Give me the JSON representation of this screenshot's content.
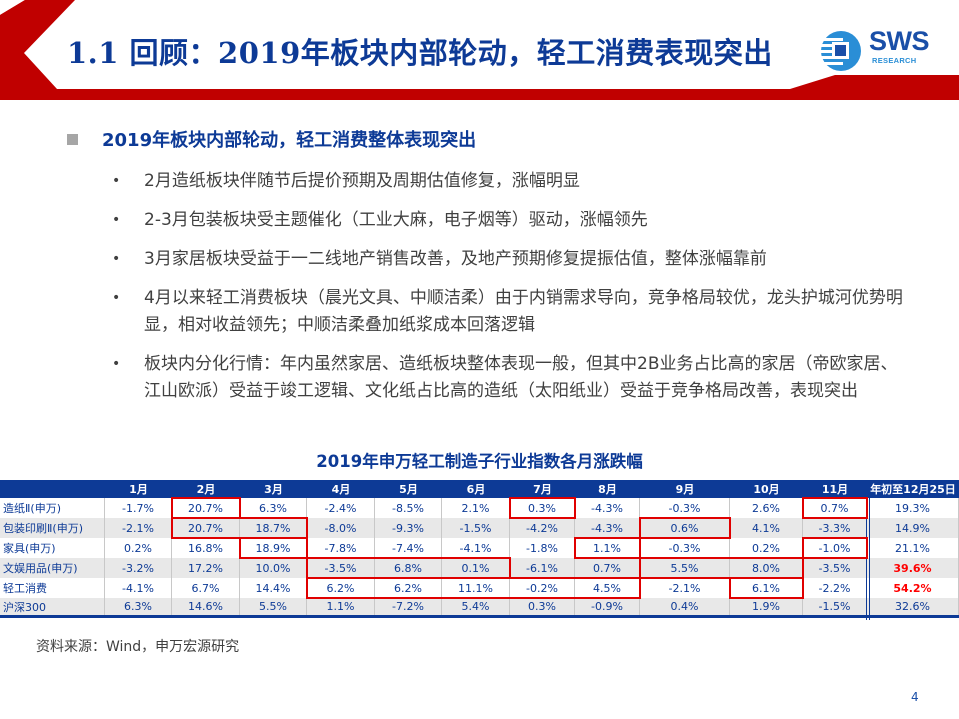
{
  "header": {
    "title": "1.1 回顾：2019年板块内部轮动，轻工消费表现突出",
    "logo_text": "SWS",
    "logo_sub": "RESEARCH",
    "accent_color": "#c00000",
    "title_color": "#0d3a96"
  },
  "section": {
    "heading": "2019年板块内部轮动，轻工消费整体表现突出",
    "bullets": [
      "2月造纸板块伴随节后提价预期及周期估值修复，涨幅明显",
      "2-3月包装板块受主题催化（工业大麻，电子烟等）驱动，涨幅领先",
      "3月家居板块受益于一二线地产销售改善，及地产预期修复提振估值，整体涨幅靠前",
      "4月以来轻工消费板块（晨光文具、中顺洁柔）由于内销需求导向，竞争格局较优，龙头护城河优势明显，相对收益领先；中顺洁柔叠加纸浆成本回落逻辑",
      "板块内分化行情：年内虽然家居、造纸板块整体表现一般，但其中2B业务占比高的家居（帝欧家居、江山欧派）受益于竣工逻辑、文化纸占比高的造纸（太阳纸业）受益于竞争格局改善，表现突出"
    ]
  },
  "table": {
    "title": "2019年申万轻工制造子行业指数各月涨跌幅",
    "columns": [
      "",
      "1月",
      "2月",
      "3月",
      "4月",
      "5月",
      "6月",
      "7月",
      "8月",
      "9月",
      "10月",
      "11月",
      "年初至12月25日"
    ],
    "rows": [
      {
        "label": "造纸Ⅱ(申万)",
        "values": [
          "-1.7%",
          "20.7%",
          "6.3%",
          "-2.4%",
          "-8.5%",
          "2.1%",
          "0.3%",
          "-4.3%",
          "-0.3%",
          "2.6%",
          "0.7%",
          "19.3%"
        ]
      },
      {
        "label": "包装印刷Ⅱ(申万)",
        "values": [
          "-2.1%",
          "20.7%",
          "18.7%",
          "-8.0%",
          "-9.3%",
          "-1.5%",
          "-4.2%",
          "-4.3%",
          "0.6%",
          "4.1%",
          "-3.3%",
          "14.9%"
        ]
      },
      {
        "label": "家具(申万)",
        "values": [
          "0.2%",
          "16.8%",
          "18.9%",
          "-7.8%",
          "-7.4%",
          "-4.1%",
          "-1.8%",
          "1.1%",
          "-0.3%",
          "0.2%",
          "-1.0%",
          "21.1%"
        ]
      },
      {
        "label": "文娱用品(申万)",
        "values": [
          "-3.2%",
          "17.2%",
          "10.0%",
          "-3.5%",
          "6.8%",
          "0.1%",
          "-6.1%",
          "0.7%",
          "5.5%",
          "8.0%",
          "-3.5%",
          "39.6%"
        ]
      },
      {
        "label": "轻工消费",
        "values": [
          "-4.1%",
          "6.7%",
          "14.4%",
          "6.2%",
          "6.2%",
          "11.1%",
          "-0.2%",
          "4.5%",
          "-2.1%",
          "6.1%",
          "-2.2%",
          "54.2%"
        ]
      },
      {
        "label": "沪深300",
        "values": [
          "6.3%",
          "14.6%",
          "5.5%",
          "1.1%",
          "-7.2%",
          "5.4%",
          "0.3%",
          "-0.9%",
          "0.4%",
          "1.9%",
          "-1.5%",
          "32.6%"
        ]
      }
    ],
    "highlighted_ytd": [
      "39.6%",
      "54.2%"
    ],
    "highlight_color": "#e00000",
    "highlights": [
      {
        "row": "造纸Ⅱ(申万)",
        "months": [
          "2月"
        ]
      },
      {
        "row": "造纸Ⅱ(申万)",
        "months": [
          "7月"
        ]
      },
      {
        "row": "造纸Ⅱ(申万)",
        "months": [
          "11月"
        ]
      },
      {
        "row": "包装印刷Ⅱ(申万)",
        "months": [
          "2月",
          "3月"
        ]
      },
      {
        "row": "包装印刷Ⅱ(申万)",
        "months": [
          "9月"
        ]
      },
      {
        "row": "家具(申万)",
        "months": [
          "3月"
        ]
      },
      {
        "row": "家具(申万)",
        "months": [
          "8月"
        ]
      },
      {
        "row": "家具(申万)",
        "months": [
          "11月"
        ]
      },
      {
        "row": "文娱用品(申万)",
        "months": [
          "4月",
          "5月",
          "6月"
        ]
      },
      {
        "row": "文娱用品(申万)",
        "months": [
          "9月",
          "10月"
        ]
      },
      {
        "row": "轻工消费",
        "months": [
          "4月",
          "5月",
          "6月",
          "7月",
          "8月"
        ]
      },
      {
        "row": "轻工消费",
        "months": [
          "10月"
        ]
      }
    ]
  },
  "footer": {
    "source": "资料来源：Wind，申万宏源研究",
    "page_number": "4"
  }
}
